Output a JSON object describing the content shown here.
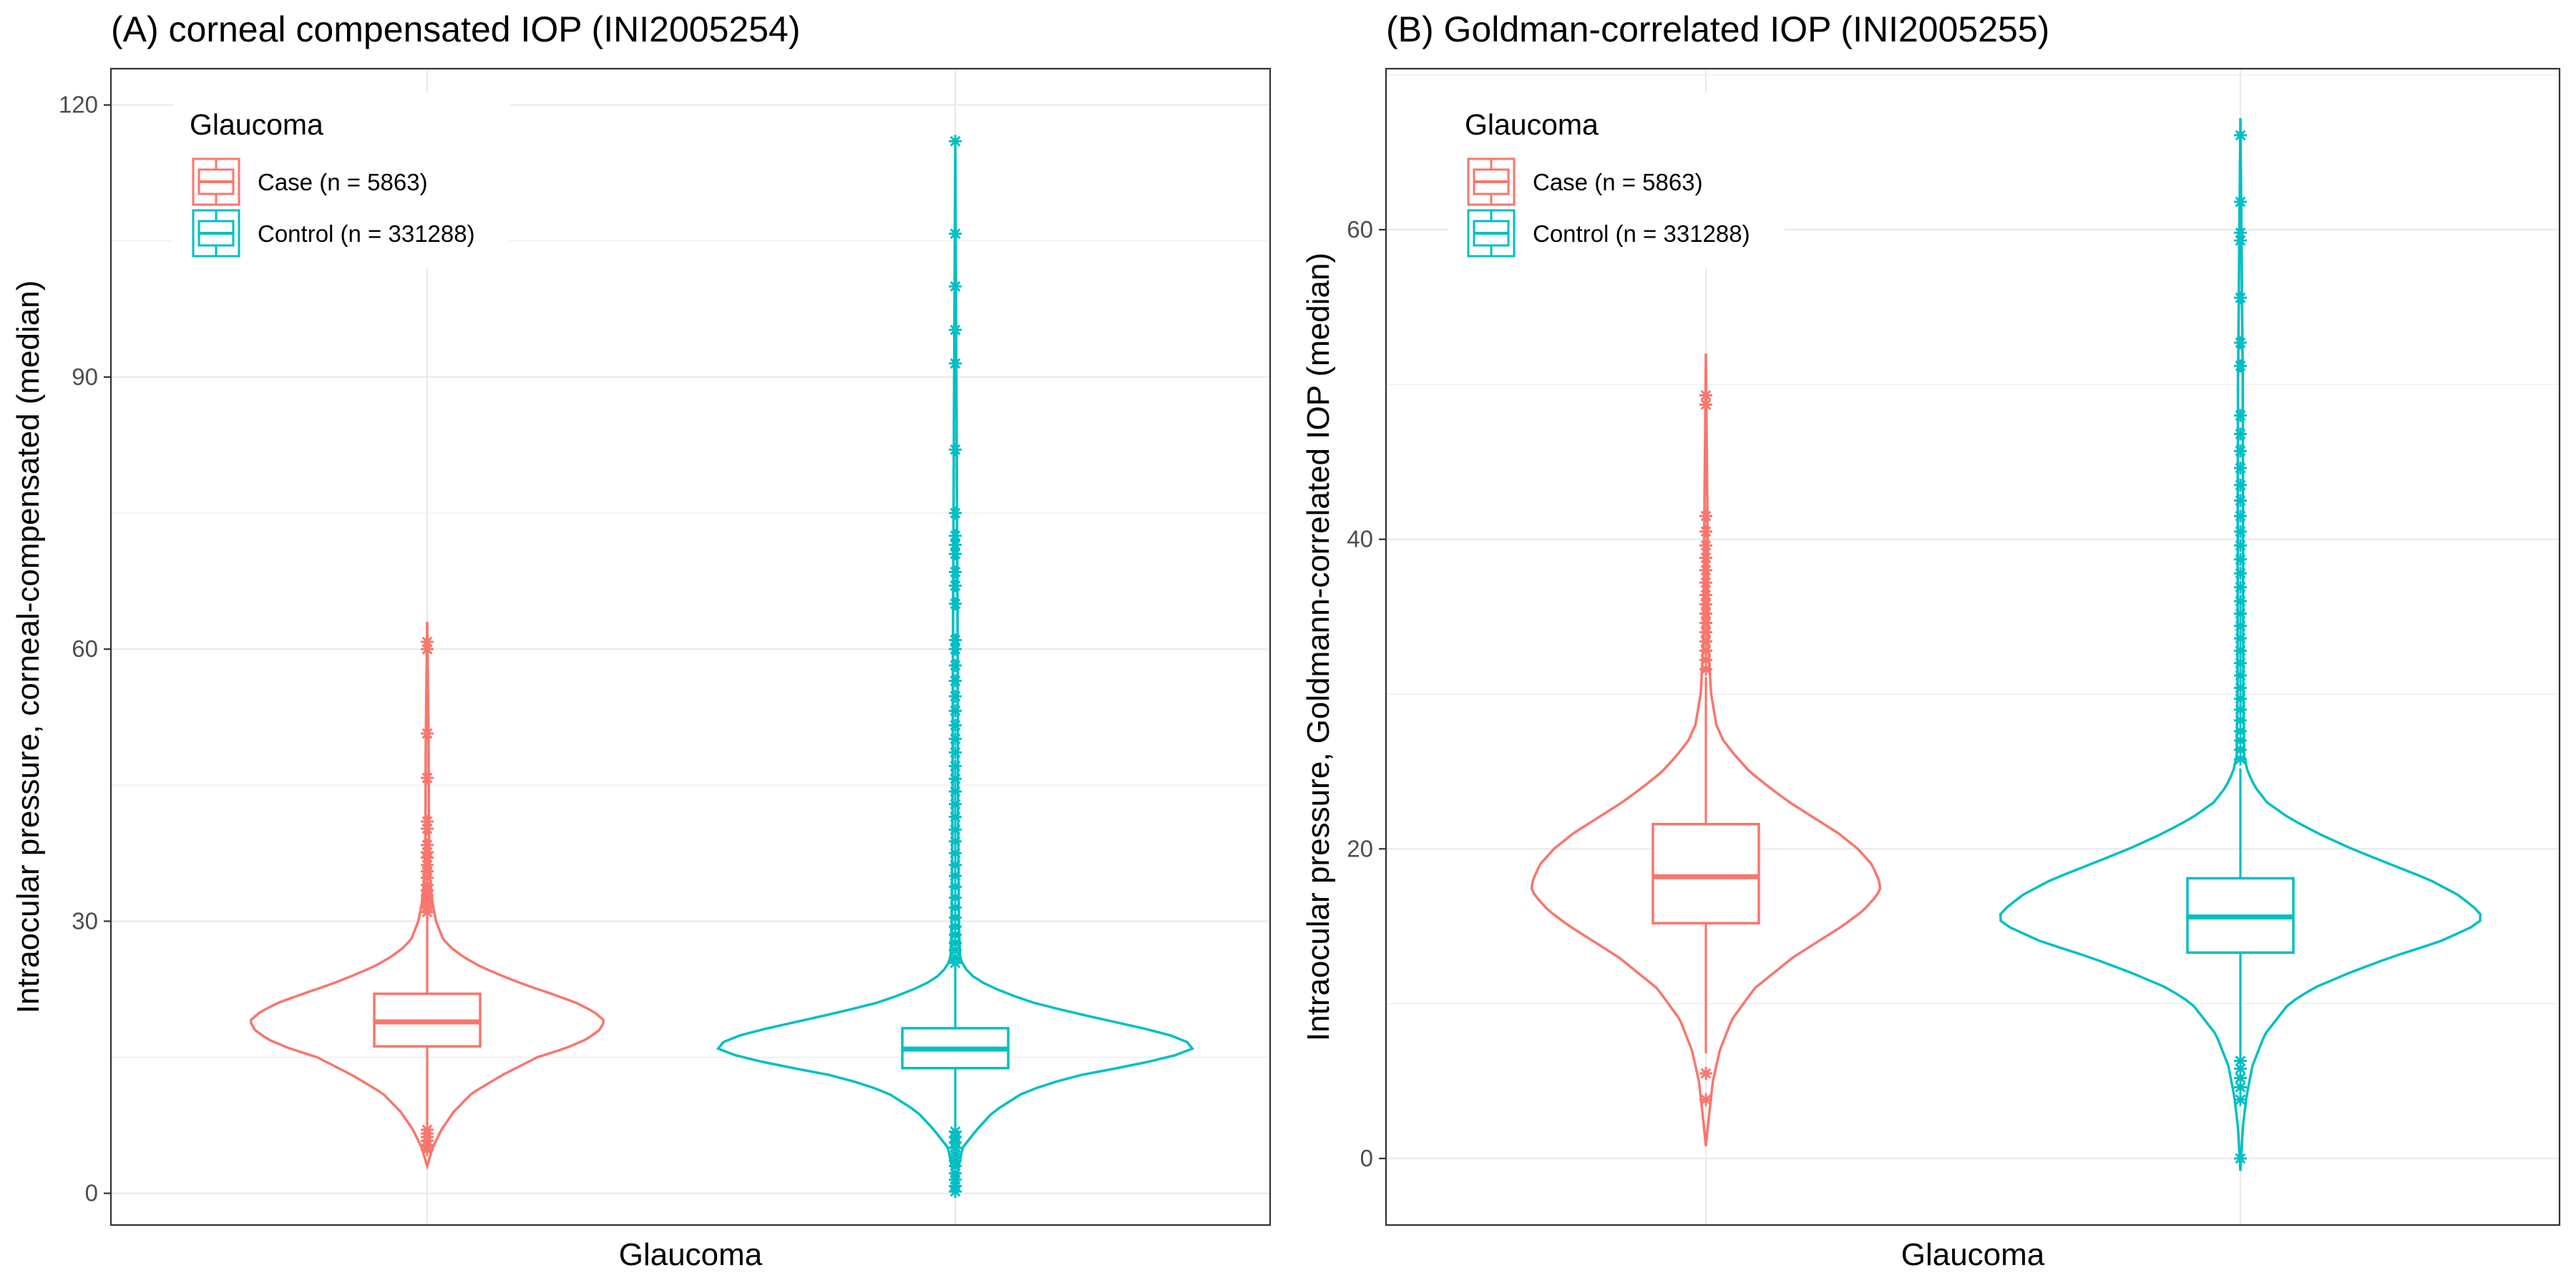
{
  "chart_data": [
    {
      "type": "violin",
      "title": "(A) corneal compensated IOP (INI2005254)",
      "xlabel": "Glaucoma",
      "ylabel": "Intraocular pressure, corneal-compensated (median)",
      "ylim": [
        -3.5,
        124
      ],
      "yticks": [
        0,
        30,
        60,
        90,
        120
      ],
      "grid": true,
      "legend": {
        "title": "Glaucoma",
        "position": "top-left",
        "entries": [
          "Case (n = 5863)",
          "Control (n = 331288)"
        ]
      },
      "series": [
        {
          "name": "Case (n = 5863)",
          "color": "#F8766D",
          "violin": {
            "ymin": 3,
            "ymax": 63,
            "profile": [
              [
                3,
                0
              ],
              [
                5,
                0.03
              ],
              [
                7,
                0.08
              ],
              [
                9,
                0.15
              ],
              [
                11,
                0.25
              ],
              [
                13,
                0.42
              ],
              [
                15,
                0.62
              ],
              [
                16,
                0.78
              ],
              [
                17,
                0.9
              ],
              [
                18,
                0.97
              ],
              [
                19,
                1.0
              ],
              [
                20,
                0.94
              ],
              [
                21,
                0.84
              ],
              [
                22,
                0.7
              ],
              [
                23,
                0.55
              ],
              [
                24,
                0.42
              ],
              [
                25,
                0.3
              ],
              [
                26,
                0.21
              ],
              [
                27,
                0.14
              ],
              [
                28,
                0.09
              ],
              [
                30,
                0.05
              ],
              [
                32,
                0.03
              ],
              [
                35,
                0.015
              ],
              [
                40,
                0.01
              ],
              [
                50,
                0.008
              ],
              [
                63,
                0
              ]
            ]
          },
          "box": {
            "q1": 16.2,
            "median": 18.9,
            "q3": 22.0,
            "whisker_low": 7.5,
            "whisker_high": 30.7
          },
          "outliers": [
            4.8,
            5.3,
            5.8,
            6.2,
            6.6,
            7.0,
            31.0,
            31.6,
            32.2,
            32.8,
            33.4,
            34.0,
            34.8,
            35.5,
            36.2,
            37.0,
            37.6,
            38.4,
            40.2,
            41.0,
            45.8,
            50.7,
            60.0,
            60.8
          ]
        },
        {
          "name": "Control (n = 331288)",
          "color": "#00BFC4",
          "violin": {
            "ymin": 0,
            "ymax": 116,
            "profile": [
              [
                0,
                0
              ],
              [
                3,
                0.015
              ],
              [
                5,
                0.03
              ],
              [
                6,
                0.06
              ],
              [
                7,
                0.09
              ],
              [
                9,
                0.16
              ],
              [
                11,
                0.28
              ],
              [
                12,
                0.38
              ],
              [
                13,
                0.52
              ],
              [
                14,
                0.72
              ],
              [
                15,
                0.9
              ],
              [
                16,
                1.0
              ],
              [
                17,
                0.96
              ],
              [
                18,
                0.82
              ],
              [
                19,
                0.65
              ],
              [
                20,
                0.48
              ],
              [
                21,
                0.33
              ],
              [
                22,
                0.22
              ],
              [
                23,
                0.13
              ],
              [
                24,
                0.07
              ],
              [
                25,
                0.035
              ],
              [
                26,
                0.02
              ],
              [
                30,
                0.015
              ],
              [
                40,
                0.012
              ],
              [
                60,
                0.01
              ],
              [
                116,
                0
              ]
            ]
          },
          "box": {
            "q1": 13.8,
            "median": 15.9,
            "q3": 18.2,
            "whisker_low": 7.2,
            "whisker_high": 24.9
          },
          "outliers": [
            0.2,
            0.8,
            1.5,
            2.2,
            3.0,
            3.6,
            4.3,
            5.0,
            5.6,
            6.2,
            6.8,
            25.4,
            26.0,
            26.8,
            27.6,
            28.5,
            29.4,
            30.4,
            31.5,
            32.6,
            33.8,
            35.0,
            36.2,
            37.5,
            38.8,
            40.1,
            41.5,
            42.9,
            44.3,
            45.7,
            47.1,
            48.6,
            50.1,
            51.6,
            53.2,
            54.8,
            56.5,
            58.2,
            60.0,
            61.0,
            65.0,
            67.0,
            68.5,
            70.5,
            71.5,
            72.5,
            75.0,
            82.0,
            91.5,
            95.2,
            100.0,
            105.8,
            116.0
          ]
        }
      ]
    },
    {
      "type": "violin",
      "title": "(B) Goldman-correlated IOP (INI2005255)",
      "xlabel": "Glaucoma",
      "ylabel": "Intraocular pressure, Goldmann-correlated IOP (median)",
      "ylim": [
        -4.3,
        70.4
      ],
      "yticks": [
        0,
        20,
        40,
        60
      ],
      "grid": true,
      "legend": {
        "title": "Glaucoma",
        "position": "top-left",
        "entries": [
          "Case (n = 5863)",
          "Control (n = 331288)"
        ]
      },
      "series": [
        {
          "name": "Case (n = 5863)",
          "color": "#F8766D",
          "violin": {
            "ymin": 0.8,
            "ymax": 52,
            "profile": [
              [
                0.8,
                0
              ],
              [
                3,
                0.02
              ],
              [
                5,
                0.04
              ],
              [
                7,
                0.08
              ],
              [
                9,
                0.15
              ],
              [
                11,
                0.28
              ],
              [
                13,
                0.5
              ],
              [
                14,
                0.64
              ],
              [
                15,
                0.78
              ],
              [
                16,
                0.9
              ],
              [
                17,
                0.98
              ],
              [
                17.5,
                1.0
              ],
              [
                18,
                0.99
              ],
              [
                19,
                0.95
              ],
              [
                20,
                0.87
              ],
              [
                21,
                0.76
              ],
              [
                22,
                0.62
              ],
              [
                23,
                0.48
              ],
              [
                24,
                0.36
              ],
              [
                25,
                0.25
              ],
              [
                26,
                0.17
              ],
              [
                27,
                0.1
              ],
              [
                28,
                0.06
              ],
              [
                30,
                0.03
              ],
              [
                33,
                0.015
              ],
              [
                40,
                0.01
              ],
              [
                52,
                0
              ]
            ]
          },
          "box": {
            "q1": 15.2,
            "median": 18.2,
            "q3": 21.6,
            "whisker_low": 6.8,
            "whisker_high": 31.1
          },
          "outliers": [
            3.8,
            5.5,
            31.6,
            32.2,
            32.8,
            33.4,
            34.0,
            34.6,
            35.2,
            35.8,
            36.4,
            37.2,
            38.0,
            38.8,
            39.6,
            40.5,
            41.5,
            48.7,
            49.3
          ]
        },
        {
          "name": "Control (n = 331288)",
          "color": "#00BFC4",
          "violin": {
            "ymin": -0.8,
            "ymax": 67.2,
            "profile": [
              [
                -0.8,
                0
              ],
              [
                2,
                0.01
              ],
              [
                4,
                0.025
              ],
              [
                6,
                0.05
              ],
              [
                8,
                0.1
              ],
              [
                10,
                0.2
              ],
              [
                11,
                0.3
              ],
              [
                12,
                0.45
              ],
              [
                13,
                0.62
              ],
              [
                14,
                0.82
              ],
              [
                15,
                0.96
              ],
              [
                15.5,
                1.0
              ],
              [
                16,
                0.98
              ],
              [
                17,
                0.9
              ],
              [
                18,
                0.78
              ],
              [
                19,
                0.62
              ],
              [
                20,
                0.46
              ],
              [
                21,
                0.32
              ],
              [
                22,
                0.2
              ],
              [
                23,
                0.11
              ],
              [
                24,
                0.06
              ],
              [
                25,
                0.03
              ],
              [
                26,
                0.015
              ],
              [
                30,
                0.012
              ],
              [
                50,
                0.01
              ],
              [
                67.2,
                0
              ]
            ]
          },
          "box": {
            "q1": 13.3,
            "median": 15.6,
            "q3": 18.1,
            "whisker_low": 6.5,
            "whisker_high": 25.2
          },
          "outliers": [
            0.0,
            3.8,
            4.6,
            5.2,
            5.8,
            6.3,
            25.8,
            26.4,
            27.0,
            27.6,
            28.3,
            29.0,
            29.7,
            30.4,
            31.2,
            32.0,
            32.8,
            33.6,
            34.4,
            35.2,
            36.0,
            36.9,
            37.8,
            38.7,
            39.6,
            40.5,
            41.5,
            42.5,
            43.5,
            44.6,
            45.7,
            46.8,
            48.0,
            51.2,
            52.7,
            55.6,
            59.3,
            59.8,
            61.8,
            66.1
          ]
        }
      ]
    }
  ]
}
